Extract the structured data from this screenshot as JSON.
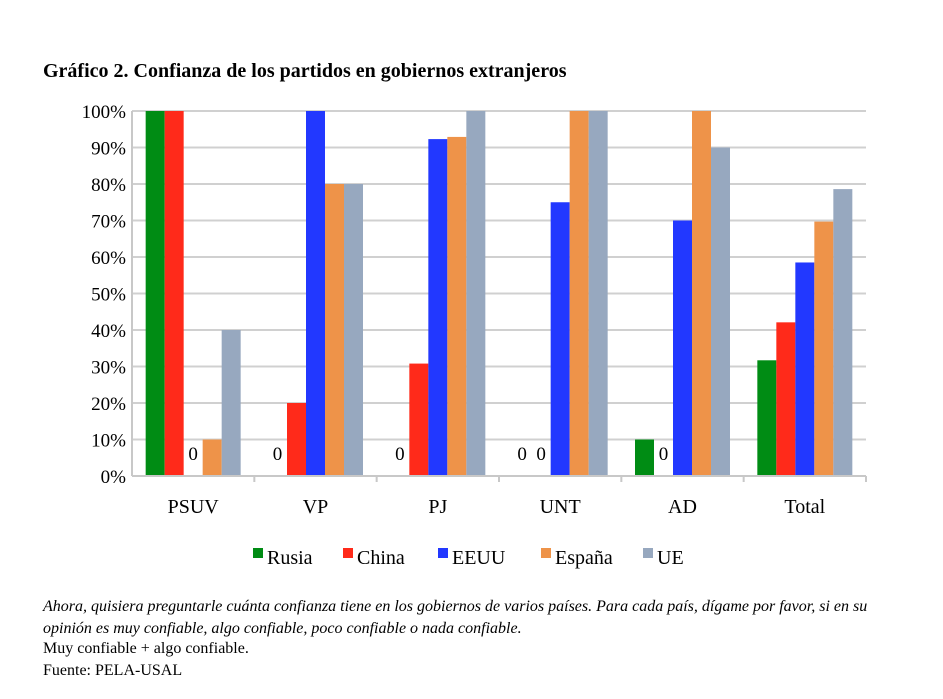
{
  "chart_data": {
    "type": "bar",
    "title": "Gráfico 2. Confianza de los partidos en gobiernos extranjeros",
    "categories": [
      "PSUV",
      "VP",
      "PJ",
      "UNT",
      "AD",
      "Total"
    ],
    "series": [
      {
        "name": "Rusia",
        "color": "#008c14",
        "values": [
          100,
          0,
          0,
          0,
          10,
          31.7
        ]
      },
      {
        "name": "China",
        "color": "#ff2a1a",
        "values": [
          100,
          20,
          30.8,
          0,
          0,
          42.1
        ]
      },
      {
        "name": "EEUU",
        "color": "#2238ff",
        "values": [
          0,
          100,
          92.3,
          75,
          70,
          58.5
        ]
      },
      {
        "name": "España",
        "color": "#ee9349",
        "values": [
          10,
          80,
          92.9,
          100,
          100,
          69.7
        ]
      },
      {
        "name": "UE",
        "color": "#97a8bf",
        "values": [
          40,
          80,
          100,
          100,
          90,
          78.6
        ]
      }
    ],
    "zero_label": "0",
    "yticks": [
      "0%",
      "10%",
      "20%",
      "30%",
      "40%",
      "50%",
      "60%",
      "70%",
      "80%",
      "90%",
      "100%"
    ],
    "ylim": [
      0,
      100
    ],
    "grid": true,
    "legend": "bottom"
  },
  "notes": {
    "question": "Ahora, quisiera preguntarle cuánta confianza tiene en los gobiernos de varios países. Para cada país, dígame por favor, si en su opinión es muy confiable, algo confiable, poco confiable o nada confiable.",
    "measure": "Muy confiable + algo confiable.",
    "source": "Fuente: PELA-USAL"
  }
}
